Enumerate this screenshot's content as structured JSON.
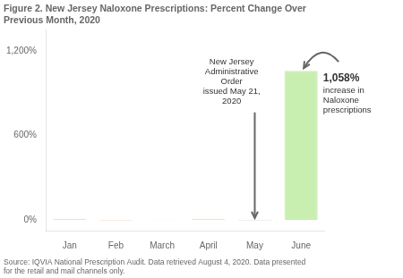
{
  "chart_data": {
    "type": "bar",
    "title": "Figure 2. New Jersey Naloxone Prescriptions: Percent Change Over\nPrevious Month, 2020",
    "subtitle": "Source: IQVIA National Prescription Audit. Data retrieved August 4, 2020. Data presented\nfor the retail and mail channels only.",
    "categories": [
      "Jan",
      "Feb",
      "March",
      "April",
      "May",
      "June"
    ],
    "values": [
      5,
      -3,
      2,
      8,
      -4,
      1058
    ],
    "colors": [
      "#aec6e0",
      "#f5a97f",
      "#d0d0d0",
      "#f5e87a",
      "#aec6e0",
      "#c8efb0"
    ],
    "ylim": [
      -80,
      1350
    ],
    "yticks": [
      {
        "value": 0,
        "label": "0%"
      },
      {
        "value": 600,
        "label": "600%"
      },
      {
        "value": 1200,
        "label": "1,200%"
      }
    ],
    "grid": false,
    "annotations": [
      "New Jersey\nAdministrative\nOrder\nissued May 21,\n2020",
      "1,058%\nincrease in\nNaloxone\nprescriptions"
    ]
  }
}
